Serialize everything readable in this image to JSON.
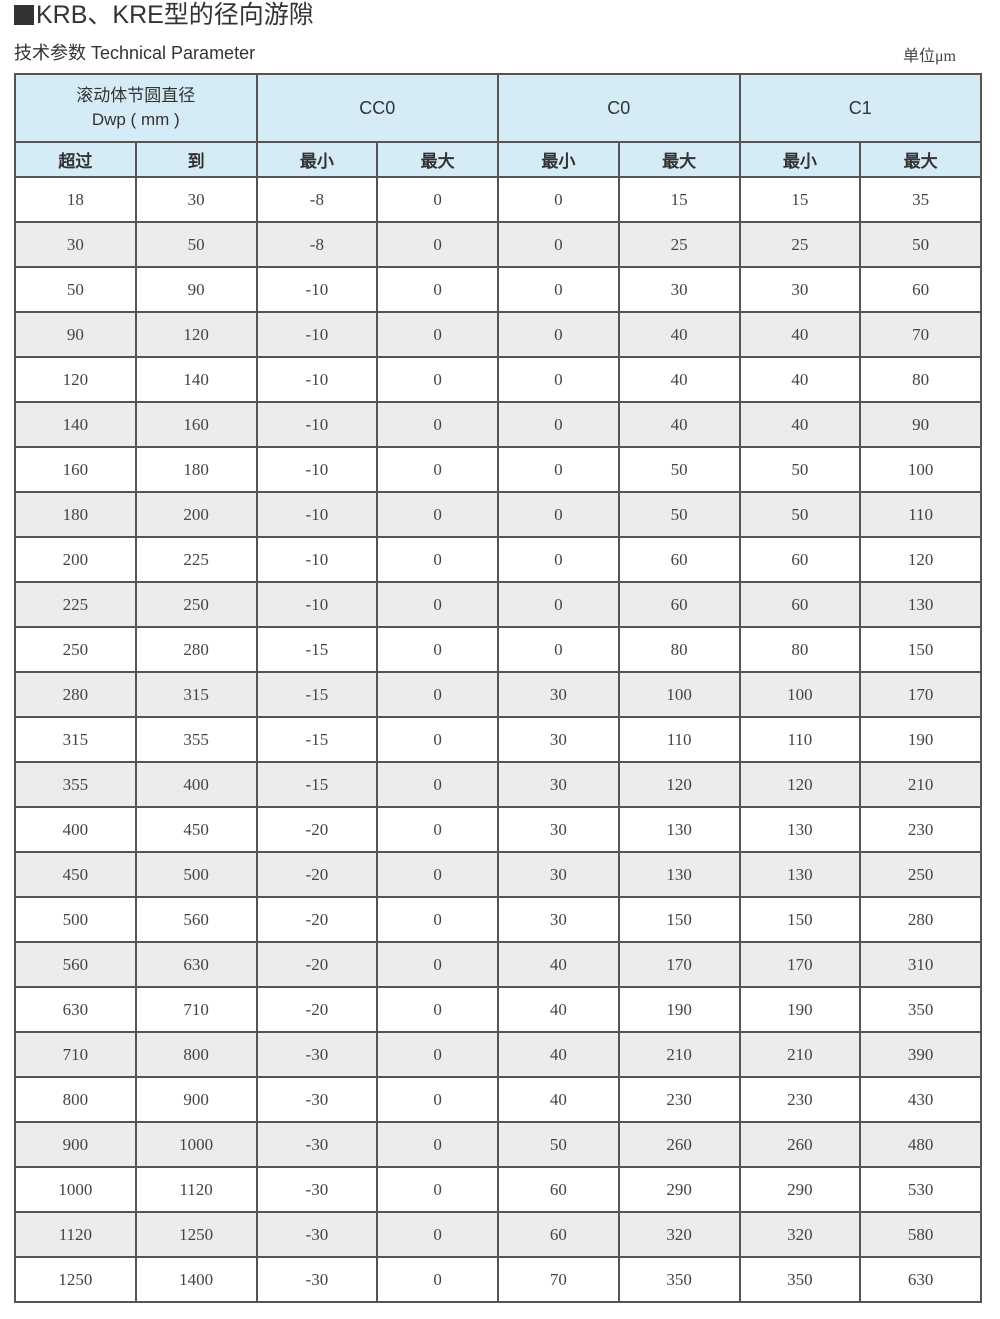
{
  "title": "KRB、KRE型的径向游隙",
  "subtitle": "技术参数  Technical Parameter",
  "unit": "单位μm",
  "table": {
    "dwp_header_line1": "滚动体节圆直径",
    "dwp_header_line2": "Dwp ( mm )",
    "groups": [
      "CC0",
      "C0",
      "C1"
    ],
    "subheaders": [
      "超过",
      "到",
      "最小",
      "最大",
      "最小",
      "最大",
      "最小",
      "最大"
    ],
    "rows": [
      [
        "18",
        "30",
        "-8",
        "0",
        "0",
        "15",
        "15",
        "35"
      ],
      [
        "30",
        "50",
        "-8",
        "0",
        "0",
        "25",
        "25",
        "50"
      ],
      [
        "50",
        "90",
        "-10",
        "0",
        "0",
        "30",
        "30",
        "60"
      ],
      [
        "90",
        "120",
        "-10",
        "0",
        "0",
        "40",
        "40",
        "70"
      ],
      [
        "120",
        "140",
        "-10",
        "0",
        "0",
        "40",
        "40",
        "80"
      ],
      [
        "140",
        "160",
        "-10",
        "0",
        "0",
        "40",
        "40",
        "90"
      ],
      [
        "160",
        "180",
        "-10",
        "0",
        "0",
        "50",
        "50",
        "100"
      ],
      [
        "180",
        "200",
        "-10",
        "0",
        "0",
        "50",
        "50",
        "110"
      ],
      [
        "200",
        "225",
        "-10",
        "0",
        "0",
        "60",
        "60",
        "120"
      ],
      [
        "225",
        "250",
        "-10",
        "0",
        "0",
        "60",
        "60",
        "130"
      ],
      [
        "250",
        "280",
        "-15",
        "0",
        "0",
        "80",
        "80",
        "150"
      ],
      [
        "280",
        "315",
        "-15",
        "0",
        "30",
        "100",
        "100",
        "170"
      ],
      [
        "315",
        "355",
        "-15",
        "0",
        "30",
        "110",
        "110",
        "190"
      ],
      [
        "355",
        "400",
        "-15",
        "0",
        "30",
        "120",
        "120",
        "210"
      ],
      [
        "400",
        "450",
        "-20",
        "0",
        "30",
        "130",
        "130",
        "230"
      ],
      [
        "450",
        "500",
        "-20",
        "0",
        "30",
        "130",
        "130",
        "250"
      ],
      [
        "500",
        "560",
        "-20",
        "0",
        "30",
        "150",
        "150",
        "280"
      ],
      [
        "560",
        "630",
        "-20",
        "0",
        "40",
        "170",
        "170",
        "310"
      ],
      [
        "630",
        "710",
        "-20",
        "0",
        "40",
        "190",
        "190",
        "350"
      ],
      [
        "710",
        "800",
        "-30",
        "0",
        "40",
        "210",
        "210",
        "390"
      ],
      [
        "800",
        "900",
        "-30",
        "0",
        "40",
        "230",
        "230",
        "430"
      ],
      [
        "900",
        "1000",
        "-30",
        "0",
        "50",
        "260",
        "260",
        "480"
      ],
      [
        "1000",
        "1120",
        "-30",
        "0",
        "60",
        "290",
        "290",
        "530"
      ],
      [
        "1120",
        "1250",
        "-30",
        "0",
        "60",
        "320",
        "320",
        "580"
      ],
      [
        "1250",
        "1400",
        "-30",
        "0",
        "70",
        "350",
        "350",
        "630"
      ]
    ]
  }
}
